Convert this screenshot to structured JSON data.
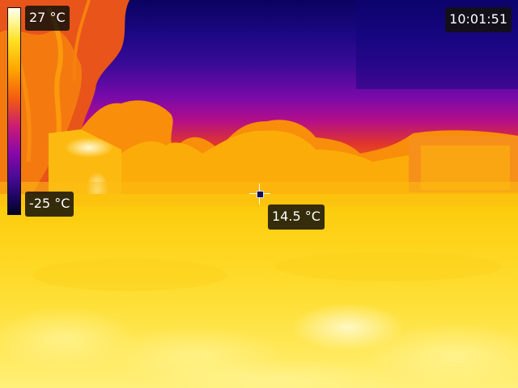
{
  "scale": {
    "max_label": "27 °C",
    "min_label": "-25 °C",
    "palette": "iron",
    "colors": [
      "#fffff4",
      "#ffe020",
      "#ffa400",
      "#f45a10",
      "#c81a78",
      "#8a08a8",
      "#4a0a98",
      "#040220"
    ]
  },
  "clock": {
    "time": "10:01:51"
  },
  "spot": {
    "temperature_label": "14.5 °C",
    "marker_icon": "crosshair-icon"
  }
}
